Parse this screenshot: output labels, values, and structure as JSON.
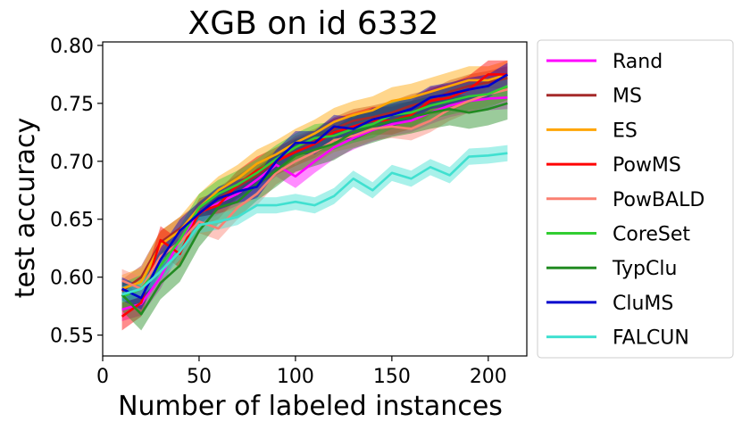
{
  "chart_data": {
    "type": "line",
    "title": "XGB on id 6332",
    "xlabel": "Number of labeled instances",
    "ylabel": "test accuracy",
    "xlim": [
      0,
      220
    ],
    "ylim": [
      0.532,
      0.803
    ],
    "xticks": [
      0,
      50,
      100,
      150,
      200
    ],
    "yticks": [
      0.55,
      0.6,
      0.65,
      0.7,
      0.75,
      0.8
    ],
    "ytick_labels": [
      "0.55",
      "0.60",
      "0.65",
      "0.70",
      "0.75",
      "0.80"
    ],
    "grid": false,
    "legend_position": "outside-right",
    "x": [
      10,
      20,
      30,
      40,
      50,
      60,
      70,
      80,
      90,
      100,
      110,
      120,
      130,
      140,
      150,
      160,
      170,
      180,
      190,
      200,
      210
    ],
    "series": [
      {
        "name": "Rand",
        "color": "#ff00ff",
        "band": 0.01,
        "values": [
          0.572,
          0.577,
          0.6,
          0.632,
          0.655,
          0.664,
          0.672,
          0.684,
          0.697,
          0.687,
          0.7,
          0.712,
          0.72,
          0.727,
          0.732,
          0.735,
          0.742,
          0.748,
          0.752,
          0.754,
          0.755
        ]
      },
      {
        "name": "MS",
        "color": "#a52a2a",
        "band": 0.01,
        "values": [
          0.588,
          0.6,
          0.63,
          0.642,
          0.654,
          0.668,
          0.678,
          0.688,
          0.7,
          0.712,
          0.718,
          0.728,
          0.735,
          0.738,
          0.742,
          0.748,
          0.752,
          0.76,
          0.765,
          0.768,
          0.772
        ]
      },
      {
        "name": "ES",
        "color": "#ffa500",
        "band": 0.012,
        "values": [
          0.59,
          0.596,
          0.628,
          0.64,
          0.66,
          0.675,
          0.685,
          0.698,
          0.706,
          0.716,
          0.724,
          0.734,
          0.74,
          0.744,
          0.752,
          0.755,
          0.76,
          0.765,
          0.77,
          0.77,
          0.775
        ]
      },
      {
        "name": "PowMS",
        "color": "#ff0000",
        "band": 0.012,
        "values": [
          0.566,
          0.578,
          0.632,
          0.62,
          0.656,
          0.662,
          0.68,
          0.692,
          0.7,
          0.708,
          0.715,
          0.725,
          0.73,
          0.735,
          0.735,
          0.74,
          0.752,
          0.755,
          0.762,
          0.775,
          0.775
        ]
      },
      {
        "name": "PowBALD",
        "color": "#fa8072",
        "band": 0.01,
        "values": [
          0.597,
          0.59,
          0.618,
          0.63,
          0.648,
          0.642,
          0.66,
          0.672,
          0.69,
          0.7,
          0.708,
          0.718,
          0.722,
          0.728,
          0.73,
          0.728,
          0.735,
          0.745,
          0.752,
          0.758,
          0.762
        ]
      },
      {
        "name": "CoreSet",
        "color": "#32cd32",
        "band": 0.012,
        "values": [
          0.583,
          0.59,
          0.61,
          0.632,
          0.66,
          0.672,
          0.68,
          0.69,
          0.702,
          0.712,
          0.72,
          0.722,
          0.728,
          0.732,
          0.74,
          0.742,
          0.748,
          0.752,
          0.756,
          0.758,
          0.765
        ]
      },
      {
        "name": "TypClu",
        "color": "#228b22",
        "band": 0.014,
        "values": [
          0.585,
          0.568,
          0.595,
          0.61,
          0.64,
          0.66,
          0.665,
          0.68,
          0.692,
          0.705,
          0.71,
          0.715,
          0.725,
          0.73,
          0.735,
          0.738,
          0.742,
          0.745,
          0.742,
          0.745,
          0.75
        ]
      },
      {
        "name": "CluMS",
        "color": "#0000cd",
        "band": 0.01,
        "values": [
          0.59,
          0.582,
          0.615,
          0.64,
          0.655,
          0.668,
          0.674,
          0.678,
          0.7,
          0.716,
          0.716,
          0.73,
          0.728,
          0.736,
          0.74,
          0.745,
          0.755,
          0.758,
          0.762,
          0.765,
          0.775
        ]
      },
      {
        "name": "FALCUN",
        "color": "#40e0d0",
        "band": 0.007,
        "values": [
          0.585,
          0.59,
          0.605,
          0.622,
          0.645,
          0.648,
          0.652,
          0.662,
          0.662,
          0.665,
          0.662,
          0.67,
          0.685,
          0.675,
          0.69,
          0.685,
          0.695,
          0.688,
          0.704,
          0.705,
          0.707
        ]
      }
    ]
  }
}
